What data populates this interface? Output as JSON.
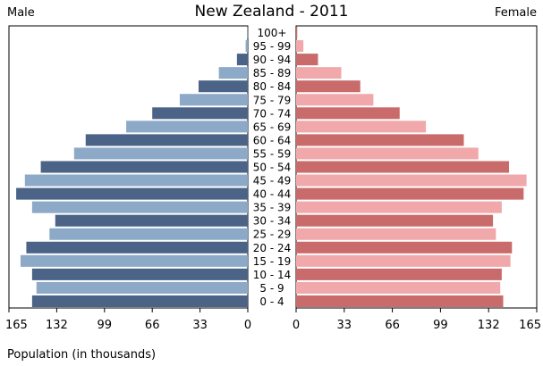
{
  "chart_data": {
    "type": "bar",
    "title": "New Zealand - 2011",
    "left_label": "Male",
    "right_label": "Female",
    "xlabel": "Population (in thousands)",
    "xlim": [
      0,
      165
    ],
    "xticks": [
      "165",
      "132",
      "99",
      "66",
      "33",
      "0",
      "0",
      "33",
      "66",
      "99",
      "132",
      "165"
    ],
    "categories": [
      "100+",
      "95 - 99",
      "90 - 94",
      "85 - 89",
      "80 - 84",
      "75 - 79",
      "70 - 74",
      "65 - 69",
      "60 - 64",
      "55 - 59",
      "50 - 54",
      "45 - 49",
      "40 - 44",
      "35 - 39",
      "30 - 34",
      "25 - 29",
      "20 - 24",
      "15 - 19",
      "10 - 14",
      "5 - 9",
      "0 - 4"
    ],
    "series": [
      {
        "name": "Male",
        "values": [
          0.2,
          1.5,
          7.5,
          20,
          34,
          47,
          66,
          84,
          112,
          120,
          143,
          154,
          160,
          149,
          133,
          137,
          153,
          157,
          149,
          146,
          149
        ]
      },
      {
        "name": "Female",
        "values": [
          0.8,
          5,
          15,
          31,
          44,
          53,
          71,
          89,
          115,
          125,
          146,
          158,
          156,
          141,
          135,
          137,
          148,
          147,
          141,
          140,
          142
        ]
      }
    ],
    "colors": {
      "male_dark": "#4a6386",
      "male_light": "#8da9c8",
      "female_dark": "#c96a6b",
      "female_light": "#f0a8ab"
    },
    "grid": false
  }
}
